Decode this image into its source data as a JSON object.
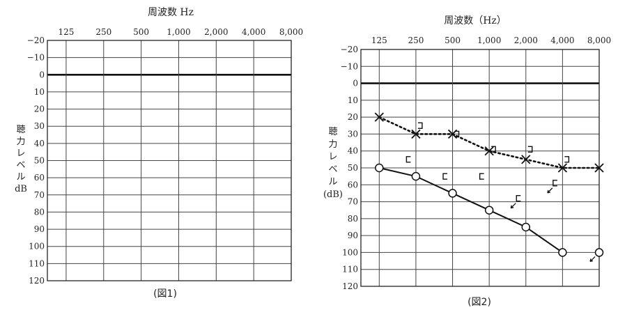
{
  "charts": [
    {
      "caption": "(図1)",
      "chart_data": {
        "type": "line",
        "title": "周波数 Hz",
        "xlabel": "周波数 Hz",
        "ylabel_lines": [
          "聴",
          "力",
          "レ",
          "ベ",
          "ル",
          "dB"
        ],
        "categories": [
          "125",
          "250",
          "500",
          "1,000",
          "2,000",
          "4,000",
          "8,000"
        ],
        "ylim": [
          -20,
          120
        ],
        "yticks": [
          "-20",
          "-10",
          "0",
          "10",
          "20",
          "30",
          "40",
          "50",
          "60",
          "70",
          "80",
          "90",
          "100",
          "110",
          "120"
        ],
        "y_inverted": true,
        "grid": true,
        "series": []
      }
    },
    {
      "caption": "(図2)",
      "chart_data": {
        "type": "line",
        "title": "周波数（Hz）",
        "xlabel": "周波数（Hz）",
        "ylabel_lines": [
          "聴",
          "力",
          "レ",
          "ベ",
          "ル",
          "(dB)"
        ],
        "categories": [
          "125",
          "250",
          "500",
          "1,000",
          "2,000",
          "4,000",
          "8,000"
        ],
        "ylim": [
          -20,
          120
        ],
        "yticks": [
          "-20",
          "-10",
          "0",
          "10",
          "20",
          "30",
          "40",
          "50",
          "60",
          "70",
          "80",
          "90",
          "100",
          "110",
          "120"
        ],
        "y_inverted": true,
        "grid": true,
        "series": [
          {
            "marker": "x",
            "line": "dotted",
            "x": [
              0,
              1,
              2,
              3,
              4,
              5,
              6
            ],
            "values": [
              20,
              30,
              30,
              40,
              45,
              50,
              50
            ]
          },
          {
            "marker": "o",
            "line": "solid",
            "x": [
              0,
              1,
              2,
              3,
              4,
              5
            ],
            "values": [
              50,
              55,
              65,
              75,
              85,
              100
            ]
          },
          {
            "marker": "o-scaleout",
            "line": "none",
            "x": [
              6
            ],
            "values": [
              100
            ]
          },
          {
            "marker": "bracket-right",
            "line": "none",
            "x": [
              1,
              2,
              3,
              4,
              5
            ],
            "values": [
              25,
              30,
              39,
              39,
              45
            ]
          },
          {
            "marker": "bracket-left",
            "line": "none",
            "x": [
              0.8,
              1.8,
              2.8
            ],
            "values": [
              45,
              55,
              55
            ]
          },
          {
            "marker": "bracket-left-scaleout",
            "line": "none",
            "x": [
              3.8,
              4.8
            ],
            "values": [
              68,
              59
            ]
          }
        ]
      }
    }
  ]
}
